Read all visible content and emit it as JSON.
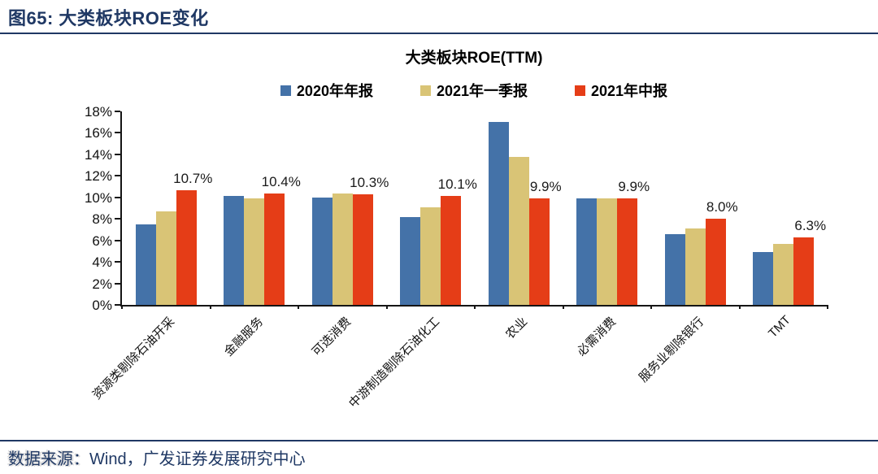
{
  "page": {
    "figure_title": "图65:  大类板块ROE变化",
    "footer": {
      "source_label": "数据来源：",
      "source_text": "Wind，广发证券发展研究中心"
    }
  },
  "colors": {
    "accent_navy": "#1F3864",
    "axis_black": "#151515",
    "bar_blue": "#4472A8",
    "bar_tan": "#D9C476",
    "bar_red": "#E53D17"
  },
  "chart_data": {
    "type": "bar",
    "title": "大类板块ROE(TTM)",
    "xlabel": "",
    "ylabel": "",
    "ylim": [
      0,
      18
    ],
    "ytick_step": 2,
    "grid": false,
    "legend_position": "top",
    "ytick_labels": [
      "0%",
      "2%",
      "4%",
      "6%",
      "8%",
      "10%",
      "12%",
      "14%",
      "16%",
      "18%"
    ],
    "categories": [
      "资源类剔除石油开采",
      "金融服务",
      "可选消费",
      "中游制造剔除石油化工",
      "农业",
      "必需消费",
      "服务业剔除银行",
      "TMT"
    ],
    "series": [
      {
        "name": "2020年年报",
        "color": "#4472A8",
        "values": [
          7.5,
          10.1,
          10.0,
          8.2,
          17.0,
          9.9,
          6.6,
          4.9
        ]
      },
      {
        "name": "2021年一季报",
        "color": "#D9C476",
        "values": [
          8.7,
          9.9,
          10.4,
          9.1,
          13.8,
          9.9,
          7.1,
          5.7
        ]
      },
      {
        "name": "2021年中报",
        "color": "#E53D17",
        "values": [
          10.7,
          10.4,
          10.3,
          10.1,
          9.9,
          9.9,
          8.0,
          6.3
        ]
      }
    ],
    "value_labels": [
      "10.7%",
      "10.4%",
      "10.3%",
      "10.1%",
      "9.9%",
      "9.9%",
      "8.0%",
      "6.3%"
    ],
    "value_labels_series": "2021年中报"
  }
}
